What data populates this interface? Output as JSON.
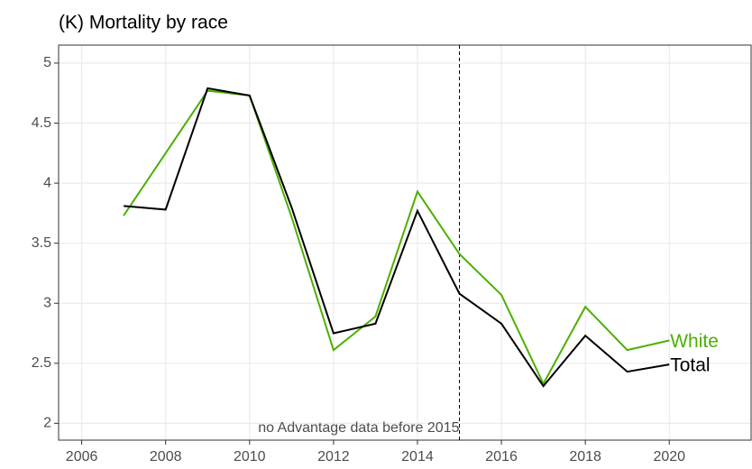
{
  "chart_data": {
    "type": "line",
    "title": "(K) Mortality by race",
    "x": [
      2007,
      2008,
      2009,
      2010,
      2011,
      2012,
      2013,
      2014,
      2015,
      2016,
      2017,
      2018,
      2019,
      2020
    ],
    "series": [
      {
        "name": "White",
        "color": "#4cb000",
        "values": [
          3.73,
          4.25,
          4.77,
          4.73,
          3.72,
          2.61,
          2.89,
          3.93,
          3.41,
          3.07,
          2.33,
          2.97,
          2.61,
          2.69
        ]
      },
      {
        "name": "Total",
        "color": "#000000",
        "values": [
          3.81,
          3.78,
          4.79,
          4.73,
          3.8,
          2.75,
          2.83,
          3.77,
          3.08,
          2.83,
          2.31,
          2.73,
          2.43,
          2.49
        ]
      }
    ],
    "xlim": [
      2005.45,
      2021.95
    ],
    "xticks": [
      2006,
      2008,
      2010,
      2012,
      2014,
      2016,
      2018,
      2020
    ],
    "ylim": [
      1.86,
      5.15
    ],
    "yticks": [
      2,
      2.5,
      3,
      3.5,
      4,
      4.5,
      5
    ],
    "grid": true,
    "vline": {
      "x": 2015,
      "label": "no Advantage data before 2015"
    }
  }
}
